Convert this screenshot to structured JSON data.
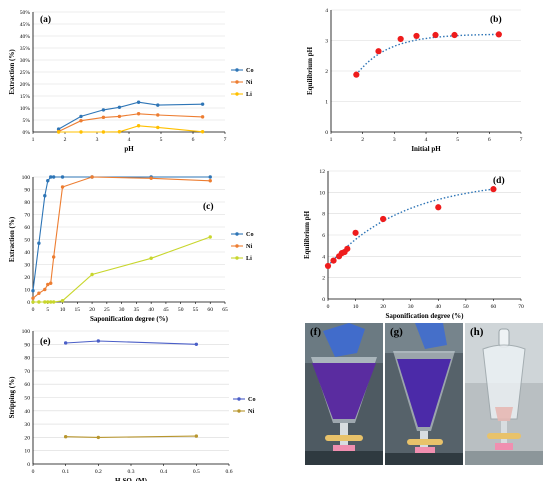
{
  "chart_data": [
    {
      "id": "a",
      "type": "line",
      "panel_label": "(a)",
      "xlabel": "pH",
      "ylabel": "Extraction (%)",
      "xlim": [
        1,
        7
      ],
      "ylim": [
        0,
        50
      ],
      "xticks": [
        1,
        2,
        3,
        4,
        5,
        6,
        7
      ],
      "yticks": [
        0,
        5,
        10,
        15,
        20,
        25,
        30,
        35,
        40,
        45,
        50
      ],
      "ytick_suffix": "%",
      "legend": "right",
      "series": [
        {
          "name": "Co",
          "color": "#2e75b6",
          "x": [
            1.8,
            2.5,
            3.2,
            3.7,
            4.3,
            4.9,
            6.3
          ],
          "y": [
            1.2,
            6.5,
            9.2,
            10.3,
            12.4,
            11.2,
            11.6
          ]
        },
        {
          "name": "Ni",
          "color": "#ed7d31",
          "x": [
            1.8,
            2.5,
            3.2,
            3.7,
            4.3,
            4.9,
            6.3
          ],
          "y": [
            0.2,
            4.7,
            6.1,
            6.5,
            7.6,
            7.1,
            6.3
          ]
        },
        {
          "name": "Li",
          "color": "#ffc000",
          "x": [
            1.8,
            2.5,
            3.2,
            3.7,
            4.3,
            4.9,
            6.3
          ],
          "y": [
            0,
            0,
            0,
            0.1,
            2.6,
            1.9,
            0.1
          ]
        }
      ]
    },
    {
      "id": "b",
      "type": "scatter",
      "panel_label": "(b)",
      "xlabel": "Initial pH",
      "ylabel": "Equilibrium pH",
      "xlim": [
        1,
        7
      ],
      "ylim": [
        0,
        4
      ],
      "xticks": [
        1,
        2,
        3,
        4,
        5,
        6,
        7
      ],
      "yticks": [
        0,
        1,
        2,
        3,
        4
      ],
      "trendline": true,
      "series": [
        {
          "name": "",
          "color": "#ee1c1c",
          "x": [
            1.8,
            2.5,
            3.2,
            3.7,
            4.3,
            4.9,
            6.3
          ],
          "y": [
            1.88,
            2.65,
            3.05,
            3.15,
            3.18,
            3.18,
            3.2
          ]
        }
      ]
    },
    {
      "id": "c",
      "type": "line",
      "panel_label": "(c)",
      "xlabel": "Saponification degree (%)",
      "ylabel": "Extraction (%)",
      "xlim": [
        0,
        65
      ],
      "ylim": [
        0,
        100
      ],
      "xticks": [
        0,
        5,
        10,
        15,
        20,
        25,
        30,
        35,
        40,
        45,
        50,
        55,
        60,
        65
      ],
      "yticks": [
        0,
        10,
        20,
        30,
        40,
        50,
        60,
        70,
        80,
        90,
        100
      ],
      "legend": "right",
      "series": [
        {
          "name": "Co",
          "color": "#2e75b6",
          "x": [
            0,
            2,
            4,
            5,
            6,
            7,
            10,
            20,
            40,
            60
          ],
          "y": [
            9,
            47,
            85,
            97,
            100,
            100,
            100,
            100,
            100,
            100
          ]
        },
        {
          "name": "Ni",
          "color": "#ed7d31",
          "x": [
            0,
            2,
            4,
            5,
            6,
            7,
            10,
            20,
            40,
            60
          ],
          "y": [
            3,
            7,
            10,
            14,
            15,
            36,
            92,
            100,
            99,
            97
          ]
        },
        {
          "name": "Li",
          "color": "#c8d62c",
          "x": [
            0,
            2,
            4,
            5,
            6,
            7,
            10,
            20,
            40,
            60
          ],
          "y": [
            0,
            0,
            0,
            0,
            0,
            0,
            1,
            22,
            35,
            52
          ]
        }
      ]
    },
    {
      "id": "d",
      "type": "scatter",
      "panel_label": "(d)",
      "xlabel": "Saponification degree (%)",
      "ylabel": "Equilibrium pH",
      "xlim": [
        0,
        70
      ],
      "ylim": [
        0,
        12
      ],
      "xticks": [
        0,
        10,
        20,
        30,
        40,
        50,
        60,
        70
      ],
      "yticks": [
        0,
        2,
        4,
        6,
        8,
        10,
        12
      ],
      "trendline": true,
      "series": [
        {
          "name": "",
          "color": "#ee1c1c",
          "x": [
            0,
            2,
            4,
            5,
            6,
            7,
            10,
            20,
            40,
            60
          ],
          "y": [
            3.1,
            3.6,
            4.0,
            4.3,
            4.4,
            4.7,
            6.2,
            7.5,
            8.6,
            10.3
          ]
        }
      ]
    },
    {
      "id": "e",
      "type": "line",
      "panel_label": "(e)",
      "xlabel": "H₂SO₄ (M)",
      "ylabel": "Stripping (%)",
      "xlim": [
        0,
        0.6
      ],
      "ylim": [
        0,
        100
      ],
      "xticks": [
        0,
        0.1,
        0.2,
        0.3,
        0.4,
        0.5,
        0.6
      ],
      "yticks": [
        0,
        10,
        20,
        30,
        40,
        50,
        60,
        70,
        80,
        90,
        100
      ],
      "legend": "right",
      "series": [
        {
          "name": "Co",
          "color": "#4a5ec7",
          "x": [
            0.1,
            0.2,
            0.5
          ],
          "y": [
            91,
            92.5,
            90
          ]
        },
        {
          "name": "Ni",
          "color": "#b8962e",
          "x": [
            0.1,
            0.2,
            0.5
          ],
          "y": [
            20.5,
            20,
            21
          ]
        }
      ]
    }
  ],
  "photos": [
    {
      "label": "(f)"
    },
    {
      "label": "(g)"
    },
    {
      "label": "(h)"
    }
  ],
  "colors": {
    "grid": "#d9d9d9",
    "axis": "#000000",
    "trend": "#2e75b6",
    "photo_bg": "#5c6e76",
    "liquid": "#5a2ca0"
  }
}
